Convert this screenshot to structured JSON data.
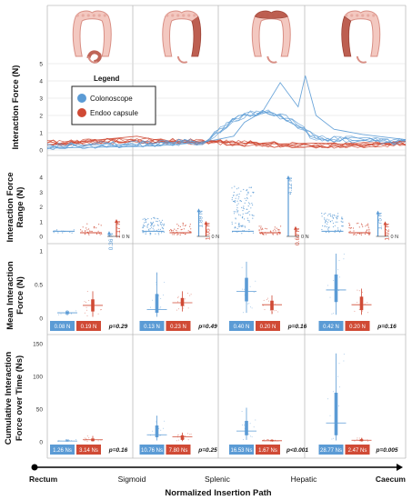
{
  "colors": {
    "colonoscope": "#5b9bd5",
    "capsule": "#d04a35",
    "colon_fill": "#f3c8c0",
    "colon_stroke": "#d98f85",
    "highlight": "#b85446",
    "grid": "#dddddd",
    "panel_border": "#bbbbbb"
  },
  "legend": {
    "title": "Legend",
    "items": [
      "Colonoscope",
      "Endoo capsule"
    ]
  },
  "path": {
    "xlabel": "Normalized Insertion Path",
    "stations": [
      "Rectum",
      "Sigmoid",
      "Splenic",
      "Hepatic",
      "Caecum"
    ]
  },
  "chart_data": [
    {
      "type": "line",
      "ylabel": "Interaction Force (N)",
      "ylim": [
        0,
        5
      ],
      "yticks": [
        "0",
        "1",
        "2",
        "3",
        "4",
        "5"
      ],
      "note": "traces for colonoscope and Endoo capsule along normalized insertion path",
      "series": [
        {
          "name": "Colonoscope",
          "color": "colonoscope",
          "x": [
            0,
            0.1,
            0.25,
            0.35,
            0.45,
            0.52,
            0.55,
            0.6,
            0.65,
            0.7,
            0.72,
            0.75,
            0.8,
            0.88,
            1.0
          ],
          "y": [
            0.1,
            0.15,
            0.2,
            0.3,
            0.5,
            0.8,
            1.6,
            2.2,
            3.9,
            2.5,
            4.3,
            2.0,
            1.2,
            0.9,
            0.6
          ]
        },
        {
          "name": "Endoo capsule",
          "color": "capsule",
          "x": [
            0,
            0.1,
            0.25,
            0.35,
            0.45,
            0.55,
            0.65,
            0.75,
            0.88,
            1.0
          ],
          "y": [
            0.3,
            0.5,
            0.8,
            0.4,
            0.5,
            0.4,
            0.35,
            0.4,
            0.3,
            0.5
          ]
        }
      ]
    },
    {
      "type": "scatter",
      "ylabel": "Interaction Force Range (N)",
      "ylim": [
        0,
        4
      ],
      "yticks": [
        "0",
        "1",
        "2",
        "3",
        "4"
      ],
      "zero_label": "0 N",
      "segments": [
        {
          "colonoscope_range": "0.36 N",
          "capsule_range": "1.17 N",
          "colonoscope_max": 0.36,
          "capsule_max": 1.17
        },
        {
          "colonoscope_range": "1.89 N",
          "capsule_range": "1.05 N",
          "colonoscope_max": 1.89,
          "capsule_max": 1.05
        },
        {
          "colonoscope_range": "4.12 N",
          "capsule_range": "0.69 N",
          "colonoscope_max": 4.12,
          "capsule_max": 0.69
        },
        {
          "colonoscope_range": "1.75 N",
          "capsule_range": "1.02 N",
          "colonoscope_max": 1.75,
          "capsule_max": 1.02
        }
      ]
    },
    {
      "type": "box",
      "ylabel": "Mean Interaction Force (N)",
      "ylim": [
        0,
        1
      ],
      "yticks": [
        "0",
        "0.5",
        "1"
      ],
      "segments": [
        {
          "colonoscope": 0.08,
          "capsule": 0.19,
          "colonoscope_label": "0.08 N",
          "capsule_label": "0.19 N",
          "p": "p=0.29",
          "c_q": [
            0.06,
            0.1
          ],
          "c_w": [
            0.04,
            0.12
          ],
          "e_q": [
            0.1,
            0.28
          ],
          "e_w": [
            0.02,
            0.4
          ]
        },
        {
          "colonoscope": 0.13,
          "capsule": 0.23,
          "colonoscope_label": "0.13 N",
          "capsule_label": "0.23 N",
          "p": "p=0.49",
          "c_q": [
            0.08,
            0.36
          ],
          "c_w": [
            0.02,
            0.68
          ],
          "e_q": [
            0.18,
            0.3
          ],
          "e_w": [
            0.1,
            0.4
          ]
        },
        {
          "colonoscope": 0.4,
          "capsule": 0.2,
          "colonoscope_label": "0.40 N",
          "capsule_label": "0.20 N",
          "p": "p=0.16",
          "c_q": [
            0.25,
            0.6
          ],
          "c_w": [
            0.08,
            0.84
          ],
          "e_q": [
            0.12,
            0.26
          ],
          "e_w": [
            0.06,
            0.34
          ]
        },
        {
          "colonoscope": 0.42,
          "capsule": 0.2,
          "colonoscope_label": "0.42 N",
          "capsule_label": "0.20 N",
          "p": "p=0.16",
          "c_q": [
            0.24,
            0.65
          ],
          "c_w": [
            0.05,
            0.96
          ],
          "e_q": [
            0.12,
            0.32
          ],
          "e_w": [
            0.05,
            0.44
          ]
        }
      ]
    },
    {
      "type": "box",
      "ylabel": "Cumulative Interaction Force over Time (Ns)",
      "ylim": [
        0,
        150
      ],
      "yticks": [
        "0",
        "50",
        "100",
        "150"
      ],
      "segments": [
        {
          "colonoscope": 1.26,
          "capsule": 3.14,
          "colonoscope_label": "1.26 Ns",
          "capsule_label": "3.14 Ns",
          "p": "p=0.16",
          "c_q": [
            0.5,
            2.5
          ],
          "c_w": [
            0.2,
            4
          ],
          "e_q": [
            1,
            5
          ],
          "e_w": [
            0.5,
            9
          ]
        },
        {
          "colonoscope": 10.76,
          "capsule": 7.8,
          "colonoscope_label": "10.76 Ns",
          "capsule_label": "7.80 Ns",
          "p": "p=0.25",
          "c_q": [
            7,
            25
          ],
          "c_w": [
            2,
            40
          ],
          "e_q": [
            3,
            10
          ],
          "e_w": [
            1,
            14
          ]
        },
        {
          "colonoscope": 16.53,
          "capsule": 1.67,
          "colonoscope_label": "16.53 Ns",
          "capsule_label": "1.67 Ns",
          "p": "p<0.001",
          "c_q": [
            10,
            32
          ],
          "c_w": [
            3,
            52
          ],
          "e_q": [
            1,
            3
          ],
          "e_w": [
            0.5,
            4
          ]
        },
        {
          "colonoscope": 28.77,
          "capsule": 2.47,
          "colonoscope_label": "28.77 Ns",
          "capsule_label": "2.47 Ns",
          "p": "p=0.005",
          "c_q": [
            10,
            75
          ],
          "c_w": [
            2,
            135
          ],
          "e_q": [
            1,
            4
          ],
          "e_w": [
            0.5,
            6
          ]
        }
      ]
    }
  ]
}
